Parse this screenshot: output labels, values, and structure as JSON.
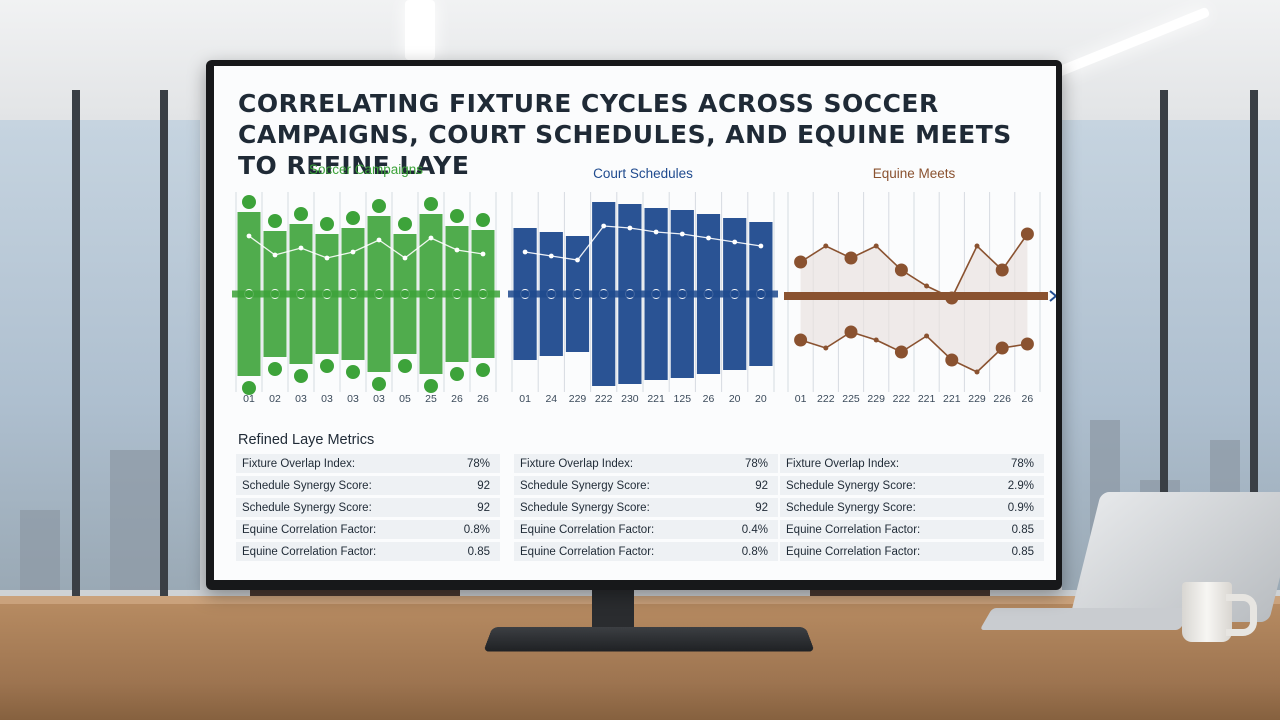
{
  "dashboard": {
    "title": "CORRELATING FIXTURE CYCLES ACROSS SOCCER CAMPAIGNS, COURT SCHEDULES, AND EQUINE MEETS TO REFINE LAYE",
    "metrics_title": "Refined Laye Metrics",
    "metric_panels": [
      {
        "rows": [
          {
            "label": "Fixture Overlap Index:",
            "value": "78%"
          },
          {
            "label": "Schedule Synergy Score:",
            "value": "92"
          },
          {
            "label": "Schedule Synergy Score:",
            "value": "92"
          },
          {
            "label": "Equine Correlation Factor:",
            "value": "0.8%"
          },
          {
            "label": "Equine Correlation Factor:",
            "value": "0.85"
          }
        ]
      },
      {
        "rows": [
          {
            "label": "Fixture Overlap Index:",
            "value": "78%"
          },
          {
            "label": "Schedule Synergy Score:",
            "value": "92"
          },
          {
            "label": "Schedule Synergy Score:",
            "value": "92"
          },
          {
            "label": "Equine Correlation Factor:",
            "value": "0.4%"
          },
          {
            "label": "Equine Correlation Factor:",
            "value": "0.8%"
          }
        ]
      },
      {
        "rows": [
          {
            "label": "Fixture Overlap Index:",
            "value": "78%"
          },
          {
            "label": "Schedule Synergy Score:",
            "value": "2.9%"
          },
          {
            "label": "Schedule Synergy Score:",
            "value": "0.9%"
          },
          {
            "label": "Equine Correlation Factor:",
            "value": "0.85"
          },
          {
            "label": "Equine Correlation Factor:",
            "value": "0.85"
          }
        ]
      }
    ]
  },
  "chart_data": [
    {
      "type": "bar",
      "title": "Soccer Campaigns",
      "color": "#3da33a",
      "categories": [
        "01",
        "02",
        "03",
        "03",
        "03",
        "03",
        "05",
        "25",
        "26",
        "26"
      ],
      "values": [
        8.2,
        6.3,
        7.0,
        6.0,
        6.6,
        7.8,
        6.0,
        8.0,
        6.8,
        6.4
      ],
      "ylim": [
        0,
        10
      ]
    },
    {
      "type": "bar",
      "title": "Court Schedules",
      "color": "#1f4a8e",
      "categories": [
        "01",
        "24",
        "229",
        "222",
        "230",
        "221",
        "125",
        "26",
        "20",
        "20"
      ],
      "values": [
        6.6,
        6.2,
        5.8,
        9.2,
        9.0,
        8.6,
        8.4,
        8.0,
        7.6,
        7.2
      ],
      "ylim": [
        0,
        10
      ]
    },
    {
      "type": "line",
      "title": "Equine Meets",
      "color": "#8a5230",
      "categories": [
        "01",
        "222",
        "225",
        "229",
        "222",
        "221",
        "221",
        "229",
        "226",
        "26"
      ],
      "series": [
        {
          "values": [
            6.0,
            6.8,
            6.2,
            6.8,
            5.6,
            4.8,
            4.2,
            6.8,
            5.6,
            7.4
          ]
        },
        {
          "values": [
            2.6,
            2.2,
            3.0,
            2.6,
            2.0,
            2.8,
            1.6,
            1.0,
            2.2,
            2.4
          ]
        }
      ],
      "ylim": [
        0,
        10
      ]
    }
  ],
  "colors": {
    "soccer": "#3da33a",
    "court": "#1f4a8e",
    "equine": "#8a5230",
    "title": "#1f2a36"
  }
}
